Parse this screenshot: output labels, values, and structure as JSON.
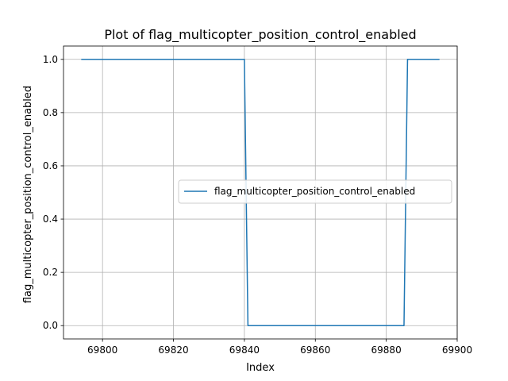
{
  "chart_data": {
    "type": "line",
    "title": "Plot of flag_multicopter_position_control_enabled",
    "xlabel": "Index",
    "ylabel": "flag_multicopter_position_control_enabled",
    "xlim": [
      69789,
      69900
    ],
    "ylim": [
      -0.05,
      1.05
    ],
    "x_ticks": [
      69800,
      69820,
      69840,
      69860,
      69880,
      69900
    ],
    "y_ticks": [
      0.0,
      0.2,
      0.4,
      0.6,
      0.8,
      1.0
    ],
    "x_tick_labels": [
      "69800",
      "69820",
      "69840",
      "69860",
      "69880",
      "69900"
    ],
    "y_tick_labels": [
      "0.0",
      "0.2",
      "0.4",
      "0.6",
      "0.8",
      "1.0"
    ],
    "grid": true,
    "legend_position": "center-right",
    "series": [
      {
        "name": "flag_multicopter_position_control_enabled",
        "color": "#1f77b4",
        "x": [
          69794,
          69840,
          69841,
          69885,
          69886,
          69895
        ],
        "y": [
          1,
          1,
          0,
          0,
          1,
          1
        ]
      }
    ]
  }
}
